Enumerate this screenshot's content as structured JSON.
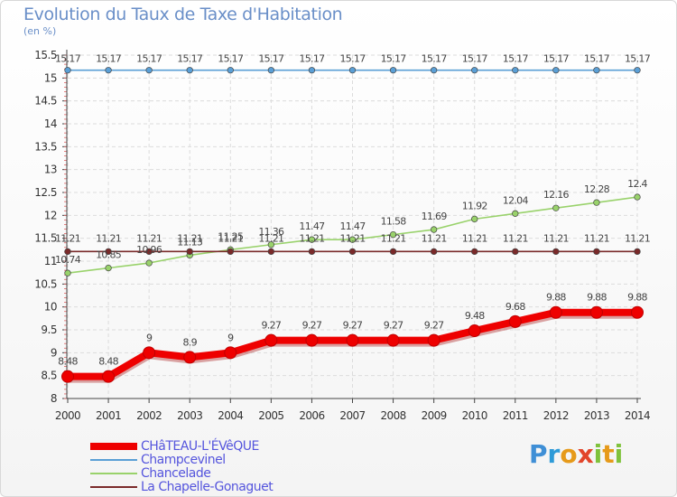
{
  "title": "Evolution du Taux de Taxe d'Habitation",
  "unit": "(en %)",
  "logo": {
    "text": "Proxiti"
  },
  "chart_data": {
    "type": "line",
    "title": "Evolution du Taux de Taxe d'Habitation",
    "ylabel": "(en %)",
    "xlabel": "",
    "x": [
      2000,
      2001,
      2002,
      2003,
      2004,
      2005,
      2006,
      2007,
      2008,
      2009,
      2010,
      2011,
      2012,
      2013,
      2014
    ],
    "ylim": [
      8,
      15.5
    ],
    "yticks": [
      8,
      8.5,
      9,
      9.5,
      10,
      10.5,
      11,
      11.5,
      12,
      12.5,
      13,
      13.5,
      14,
      14.5,
      15,
      15.5
    ],
    "ytick_labels": [
      "8",
      "8.5",
      "9",
      "9.5",
      "10",
      "10.5",
      "11",
      "11.5",
      "12",
      "12.5",
      "13",
      "13.5",
      "14",
      "14.5",
      "15",
      "15.5"
    ],
    "grid": true,
    "legend_position": "bottom-left",
    "series": [
      {
        "name": "CHâTEAU-L'ÉVêQUE",
        "color": "#ee0000",
        "values": [
          8.48,
          8.48,
          9,
          8.9,
          9,
          9.27,
          9.27,
          9.27,
          9.27,
          9.27,
          9.48,
          9.68,
          9.88,
          9.88,
          9.88
        ],
        "labels": [
          "8.48",
          "8.48",
          "9",
          "8.9",
          "9",
          "9.27",
          "9.27",
          "9.27",
          "9.27",
          "9.27",
          "9.48",
          "9.68",
          "9.88",
          "9.88",
          "9.88"
        ]
      },
      {
        "name": "Champcevinel",
        "color": "#5a9fd6",
        "values": [
          15.17,
          15.17,
          15.17,
          15.17,
          15.17,
          15.17,
          15.17,
          15.17,
          15.17,
          15.17,
          15.17,
          15.17,
          15.17,
          15.17,
          15.17
        ],
        "labels": [
          "15.17",
          "15.17",
          "15.17",
          "15.17",
          "15.17",
          "15.17",
          "15.17",
          "15.17",
          "15.17",
          "15.17",
          "15.17",
          "15.17",
          "15.17",
          "15.17",
          "15.17"
        ]
      },
      {
        "name": "Chancelade",
        "color": "#99d26b",
        "values": [
          10.74,
          10.85,
          10.96,
          11.13,
          11.25,
          11.36,
          11.47,
          11.47,
          11.58,
          11.69,
          11.92,
          12.04,
          12.16,
          12.28,
          12.4
        ],
        "labels": [
          "10.74",
          "10.85",
          "10.96",
          "11.13",
          "11.25",
          "11.36",
          "11.47",
          "11.47",
          "11.58",
          "11.69",
          "11.92",
          "12.04",
          "12.16",
          "12.28",
          "12.4"
        ]
      },
      {
        "name": "La Chapelle-Gonaguet",
        "color": "#7a2a2a",
        "values": [
          11.21,
          11.21,
          11.21,
          11.21,
          11.21,
          11.21,
          11.21,
          11.21,
          11.21,
          11.21,
          11.21,
          11.21,
          11.21,
          11.21,
          11.21
        ],
        "labels": [
          "11.21",
          "11.21",
          "11.21",
          "11.21",
          "11.21",
          "11.21",
          "11.21",
          "11.21",
          "11.21",
          "11.21",
          "11.21",
          "11.21",
          "11.21",
          "11.21",
          "11.21"
        ]
      }
    ]
  }
}
